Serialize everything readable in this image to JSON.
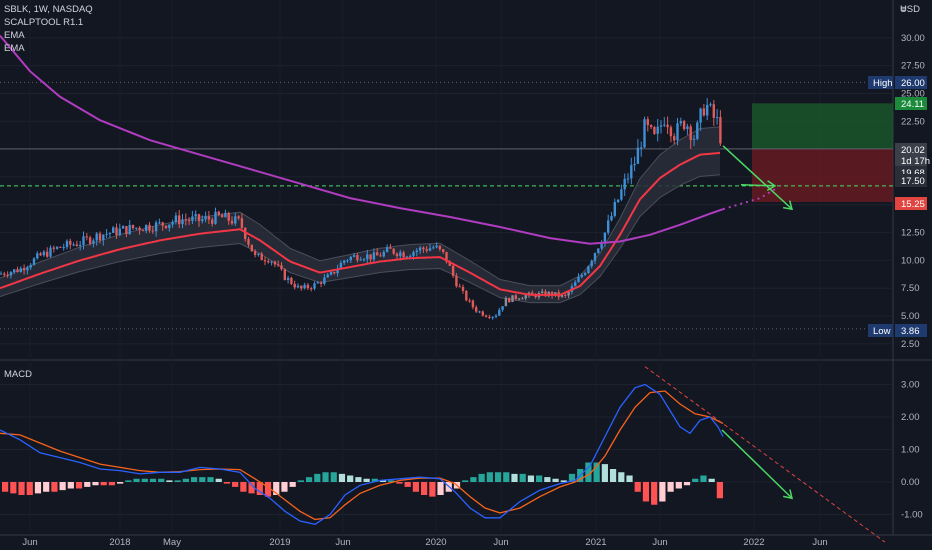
{
  "header": {
    "symbol_line": "SBLK, 1W, NASDAQ",
    "indicators": [
      "SCALPTOOL R1.1",
      "EMA",
      "EMA"
    ],
    "currency": "USD",
    "currency_menu": "≡"
  },
  "macd_label": "MACD",
  "chart_data": [
    {
      "type": "candlestick",
      "title": "SBLK, 1W, NASDAQ",
      "yticks": [
        "2.50",
        "5.00",
        "7.50",
        "10.00",
        "12.50",
        "15.00",
        "17.50",
        "20.00",
        "22.50",
        "25.00",
        "27.50",
        "30.00"
      ],
      "ylim": [
        1.5,
        32.5
      ],
      "xticks": [
        "Jun",
        "2018",
        "May",
        "2019",
        "Jun",
        "2020",
        "Jun",
        "2021",
        "Jun",
        "2022",
        "Jun"
      ],
      "price_labels": [
        {
          "prefix": "High",
          "value": "26.00",
          "color": "#1e3a6e"
        },
        {
          "prefix": "",
          "value": "24.11",
          "color": "#1b8a3b"
        },
        {
          "prefix": "",
          "value": "20.02",
          "color": "#3b3f4a"
        },
        {
          "prefix": "",
          "value": "1d 17h",
          "color": "#3b3f4a"
        },
        {
          "prefix": "",
          "value": "19.68",
          "color": "#2a2e39"
        },
        {
          "prefix": "",
          "value": "17.50",
          "color": "#2a2e39"
        },
        {
          "prefix": "",
          "value": "15.25",
          "color": "#e0453f"
        },
        {
          "prefix": "Low",
          "value": "3.86",
          "color": "#1e3a6e"
        }
      ],
      "close_series_points": [
        [
          0,
          8.8
        ],
        [
          20,
          9.2
        ],
        [
          40,
          10.4
        ],
        [
          60,
          11.2
        ],
        [
          80,
          11.6
        ],
        [
          100,
          12.3
        ],
        [
          120,
          12.7
        ],
        [
          140,
          13.0
        ],
        [
          160,
          13.2
        ],
        [
          180,
          13.7
        ],
        [
          200,
          13.6
        ],
        [
          220,
          13.9
        ],
        [
          240,
          13.4
        ],
        [
          255,
          10.3
        ],
        [
          270,
          10.2
        ],
        [
          285,
          8.5
        ],
        [
          300,
          7.4
        ],
        [
          315,
          7.8
        ],
        [
          330,
          8.6
        ],
        [
          345,
          10.1
        ],
        [
          360,
          10.5
        ],
        [
          375,
          10.3
        ],
        [
          390,
          10.9
        ],
        [
          405,
          10.6
        ],
        [
          420,
          11.0
        ],
        [
          435,
          11.2
        ],
        [
          445,
          10.4
        ],
        [
          455,
          8.2
        ],
        [
          465,
          6.7
        ],
        [
          475,
          5.6
        ],
        [
          485,
          5.1
        ],
        [
          495,
          5.0
        ],
        [
          505,
          6.4
        ],
        [
          520,
          6.8
        ],
        [
          535,
          6.9
        ],
        [
          550,
          7.0
        ],
        [
          565,
          6.7
        ],
        [
          575,
          7.9
        ],
        [
          585,
          9.1
        ],
        [
          595,
          10.8
        ],
        [
          605,
          12.5
        ],
        [
          615,
          14.8
        ],
        [
          625,
          17.0
        ],
        [
          635,
          18.9
        ],
        [
          645,
          22.0
        ],
        [
          655,
          20.8
        ],
        [
          665,
          23.1
        ],
        [
          675,
          21.3
        ],
        [
          685,
          22.6
        ],
        [
          695,
          21.0
        ],
        [
          705,
          24.2
        ],
        [
          712,
          23.0
        ],
        [
          718,
          22.3
        ],
        [
          723,
          20.0
        ]
      ],
      "ema_fast_points": [
        [
          0,
          7.5
        ],
        [
          40,
          8.8
        ],
        [
          80,
          10.0
        ],
        [
          120,
          11.0
        ],
        [
          160,
          11.8
        ],
        [
          200,
          12.4
        ],
        [
          240,
          12.8
        ],
        [
          260,
          11.8
        ],
        [
          290,
          9.9
        ],
        [
          320,
          8.9
        ],
        [
          350,
          9.4
        ],
        [
          380,
          9.9
        ],
        [
          410,
          10.2
        ],
        [
          440,
          10.3
        ],
        [
          470,
          8.9
        ],
        [
          500,
          7.4
        ],
        [
          530,
          6.9
        ],
        [
          560,
          6.9
        ],
        [
          580,
          7.7
        ],
        [
          600,
          9.5
        ],
        [
          620,
          12.3
        ],
        [
          640,
          15.5
        ],
        [
          660,
          17.4
        ],
        [
          680,
          18.6
        ],
        [
          700,
          19.5
        ],
        [
          723,
          19.68
        ]
      ],
      "ema_slow_points": [
        [
          0,
          30.2
        ],
        [
          30,
          27.0
        ],
        [
          60,
          24.7
        ],
        [
          100,
          22.6
        ],
        [
          150,
          20.8
        ],
        [
          200,
          19.5
        ],
        [
          250,
          18.2
        ],
        [
          300,
          16.9
        ],
        [
          350,
          15.6
        ],
        [
          400,
          14.7
        ],
        [
          450,
          13.9
        ],
        [
          500,
          13.0
        ],
        [
          550,
          12.0
        ],
        [
          590,
          11.5
        ],
        [
          620,
          11.7
        ],
        [
          650,
          12.3
        ],
        [
          680,
          13.2
        ],
        [
          710,
          14.2
        ],
        [
          723,
          14.6
        ]
      ],
      "ema_slow_projection": [
        [
          723,
          14.6
        ],
        [
          760,
          15.6
        ],
        [
          775,
          16.4
        ]
      ],
      "target_line_value": 16.7,
      "trade_box": {
        "entry": 20.02,
        "target": 24.11,
        "stop": 15.25,
        "x_start": 752
      },
      "arrow_main": {
        "from": [
          723,
          20.3
        ],
        "to": [
          792,
          14.6
        ]
      },
      "arrow_second": {
        "from": [
          741,
          16.8
        ],
        "to": [
          775,
          16.7
        ]
      }
    },
    {
      "type": "line",
      "title": "MACD",
      "yticks": [
        "-1.00",
        "0.00",
        "1.00",
        "2.00",
        "3.00"
      ],
      "ylim": [
        -1.6,
        3.6
      ],
      "macd_points": [
        [
          0,
          1.6
        ],
        [
          20,
          1.3
        ],
        [
          40,
          0.9
        ],
        [
          60,
          0.75
        ],
        [
          80,
          0.6
        ],
        [
          100,
          0.4
        ],
        [
          120,
          0.35
        ],
        [
          140,
          0.25
        ],
        [
          160,
          0.3
        ],
        [
          180,
          0.3
        ],
        [
          200,
          0.45
        ],
        [
          220,
          0.4
        ],
        [
          240,
          0.3
        ],
        [
          255,
          -0.2
        ],
        [
          270,
          -0.5
        ],
        [
          285,
          -0.9
        ],
        [
          300,
          -1.2
        ],
        [
          315,
          -1.3
        ],
        [
          330,
          -1.0
        ],
        [
          345,
          -0.4
        ],
        [
          360,
          -0.1
        ],
        [
          380,
          0.05
        ],
        [
          400,
          0.1
        ],
        [
          420,
          0.15
        ],
        [
          440,
          0.1
        ],
        [
          455,
          -0.3
        ],
        [
          470,
          -0.8
        ],
        [
          485,
          -1.1
        ],
        [
          500,
          -1.1
        ],
        [
          520,
          -0.6
        ],
        [
          540,
          -0.25
        ],
        [
          560,
          -0.05
        ],
        [
          575,
          0.05
        ],
        [
          590,
          0.5
        ],
        [
          605,
          1.4
        ],
        [
          620,
          2.3
        ],
        [
          635,
          2.9
        ],
        [
          645,
          3.0
        ],
        [
          660,
          2.7
        ],
        [
          670,
          2.2
        ],
        [
          680,
          1.7
        ],
        [
          690,
          1.5
        ],
        [
          700,
          1.9
        ],
        [
          710,
          2.0
        ],
        [
          718,
          1.7
        ],
        [
          723,
          1.4
        ]
      ],
      "signal_points": [
        [
          0,
          1.5
        ],
        [
          20,
          1.45
        ],
        [
          40,
          1.2
        ],
        [
          60,
          0.95
        ],
        [
          80,
          0.75
        ],
        [
          100,
          0.55
        ],
        [
          120,
          0.45
        ],
        [
          140,
          0.35
        ],
        [
          160,
          0.3
        ],
        [
          180,
          0.32
        ],
        [
          200,
          0.38
        ],
        [
          220,
          0.4
        ],
        [
          240,
          0.38
        ],
        [
          255,
          0.1
        ],
        [
          270,
          -0.2
        ],
        [
          285,
          -0.55
        ],
        [
          300,
          -0.9
        ],
        [
          315,
          -1.15
        ],
        [
          330,
          -1.1
        ],
        [
          345,
          -0.7
        ],
        [
          360,
          -0.35
        ],
        [
          380,
          -0.1
        ],
        [
          400,
          0.05
        ],
        [
          420,
          0.12
        ],
        [
          440,
          0.12
        ],
        [
          455,
          -0.05
        ],
        [
          470,
          -0.45
        ],
        [
          485,
          -0.8
        ],
        [
          500,
          -0.95
        ],
        [
          520,
          -0.8
        ],
        [
          540,
          -0.45
        ],
        [
          560,
          -0.15
        ],
        [
          575,
          0.0
        ],
        [
          590,
          0.25
        ],
        [
          605,
          0.8
        ],
        [
          620,
          1.6
        ],
        [
          635,
          2.3
        ],
        [
          650,
          2.75
        ],
        [
          665,
          2.8
        ],
        [
          680,
          2.4
        ],
        [
          695,
          2.1
        ],
        [
          710,
          2.0
        ],
        [
          723,
          1.8
        ]
      ],
      "histogram_values": [
        -0.3,
        -0.35,
        -0.4,
        -0.4,
        -0.35,
        -0.3,
        -0.3,
        -0.25,
        -0.2,
        -0.2,
        -0.15,
        -0.1,
        -0.1,
        -0.1,
        -0.05,
        0.05,
        0.1,
        0.1,
        0.1,
        0.1,
        0.05,
        0.05,
        0.1,
        0.15,
        0.15,
        0.15,
        0.1,
        -0.05,
        -0.15,
        -0.3,
        -0.35,
        -0.4,
        -0.45,
        -0.4,
        -0.3,
        -0.15,
        0.05,
        0.15,
        0.25,
        0.3,
        0.3,
        0.25,
        0.2,
        0.15,
        0.1,
        0.1,
        0.05,
        0.05,
        -0.05,
        -0.15,
        -0.3,
        -0.4,
        -0.45,
        -0.4,
        -0.3,
        -0.2,
        0.05,
        0.15,
        0.25,
        0.3,
        0.3,
        0.3,
        0.25,
        0.25,
        0.2,
        0.2,
        0.15,
        0.1,
        0.05,
        0.25,
        0.4,
        0.6,
        0.6,
        0.55,
        0.4,
        0.3,
        0.2,
        -0.3,
        -0.6,
        -0.7,
        -0.6,
        -0.3,
        -0.2,
        -0.1,
        0.1,
        0.2,
        0.1,
        -0.5
      ],
      "trend_line": {
        "from": [
          645,
          3.55
        ],
        "to": [
          885,
          -1.85
        ]
      },
      "arrow": {
        "from": [
          722,
          1.6
        ],
        "to": [
          792,
          -0.5
        ]
      }
    }
  ],
  "colors": {
    "background": "#131722",
    "up": "#3d8fd6",
    "down": "#e05a5a",
    "ema_fast": "#f23645",
    "ema_slow": "#b03cc0",
    "arrow": "#4cd964",
    "macd": "#2962ff",
    "signal": "#f7631b"
  }
}
